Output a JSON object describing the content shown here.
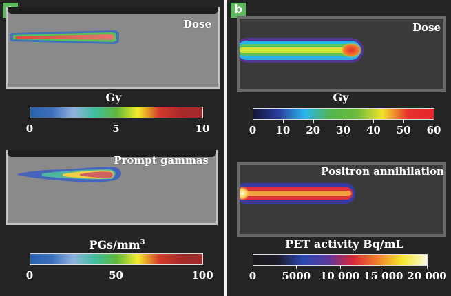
{
  "chart_data": [
    {
      "type": "heatmap",
      "panel": "a",
      "title": "Dose",
      "colorbar": {
        "label": "Gy",
        "min": 0,
        "max": 10,
        "ticks": [
          "0",
          "5",
          "10"
        ],
        "colormap": "jet"
      }
    },
    {
      "type": "heatmap",
      "panel": "a",
      "title": "Prompt gammas",
      "colorbar": {
        "label": "PGs/mm",
        "label_sup": "3",
        "min": 0,
        "max": 100,
        "ticks": [
          "0",
          "50",
          "100"
        ],
        "colormap": "jet"
      }
    },
    {
      "type": "heatmap",
      "panel": "b",
      "title": "Dose",
      "colorbar": {
        "label": "Gy",
        "min": 0,
        "max": 60,
        "ticks": [
          "0",
          "10",
          "20",
          "30",
          "40",
          "50",
          "60"
        ],
        "colormap": "jet-dark"
      }
    },
    {
      "type": "heatmap",
      "panel": "b",
      "title": "Positron annihilation",
      "colorbar": {
        "label": "PET activity Bq/mL",
        "min": 0,
        "max": 20000,
        "ticks": [
          "0",
          "5000",
          "10 000",
          "15 000",
          "20 000"
        ],
        "colormap": "hot"
      }
    }
  ],
  "panels": {
    "a": "a",
    "b": "b"
  },
  "colors": {
    "panel_tag": "#5cb85c",
    "background": "#242424"
  },
  "gradients": {
    "jet": [
      "#2a62b0",
      "#3b6fbb",
      "#90b2e0",
      "#3fbf9f",
      "#5fb83a",
      "#f4ec2a",
      "#d43a2a",
      "#a82a2a",
      "#9e2b2b"
    ],
    "jet-dark": [
      "#15163a",
      "#2a3da0",
      "#28b8ec",
      "#54b54e",
      "#6cba3a",
      "#f3e32b",
      "#e9302e",
      "#e5252b"
    ],
    "hot": [
      "#1a1a1a",
      "#1c1c2c",
      "#2b48b0",
      "#5a3aa0",
      "#d9253a",
      "#f0802a",
      "#f5e82a",
      "#fdf8e0"
    ]
  }
}
